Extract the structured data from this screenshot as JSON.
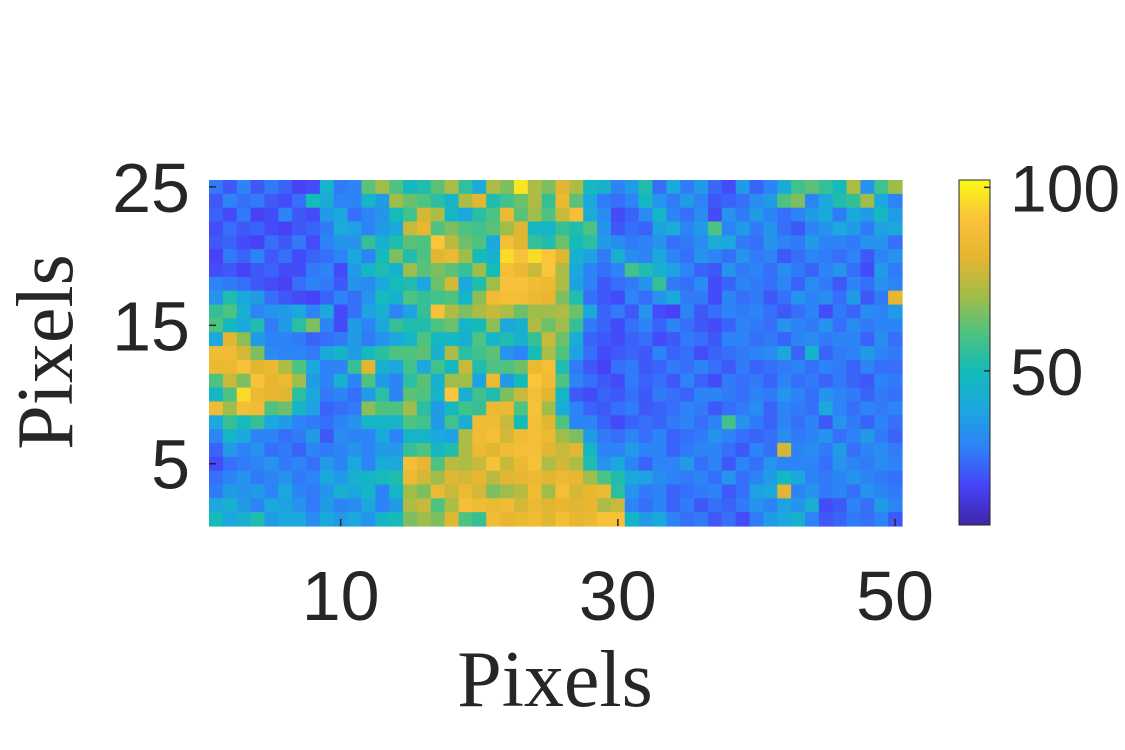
{
  "chart_data": {
    "type": "heatmap",
    "title": "",
    "xlabel": "Pixels",
    "ylabel": "Pixels",
    "xlim": [
      0.5,
      50.5
    ],
    "ylim": [
      0.5,
      25.5
    ],
    "x_ticks": [
      10,
      30,
      50
    ],
    "y_ticks": [
      5,
      15,
      25
    ],
    "colorbar": {
      "range": [
        8,
        102
      ],
      "ticks": [
        50,
        100
      ],
      "colormap": "parula"
    },
    "colormap_stops": [
      "#3e26a8",
      "#4743f8",
      "#2f80f9",
      "#1ca7df",
      "#13bbba",
      "#4ec280",
      "#a3bd47",
      "#e7b530",
      "#fac33a",
      "#f9fb14"
    ],
    "grid": false,
    "rows": 25,
    "cols": 50,
    "values_note_rows_top_to_bottom": "y = 25 first",
    "values": [
      [
        28,
        22,
        30,
        22,
        28,
        24,
        18,
        20,
        45,
        28,
        30,
        62,
        70,
        60,
        48,
        52,
        62,
        72,
        55,
        42,
        72,
        66,
        98,
        72,
        66,
        80,
        72,
        48,
        44,
        30,
        36,
        52,
        26,
        40,
        28,
        36,
        25,
        20,
        36,
        24,
        30,
        42,
        58,
        62,
        56,
        50,
        72,
        34,
        58,
        70
      ],
      [
        22,
        30,
        26,
        28,
        22,
        20,
        26,
        50,
        42,
        30,
        30,
        46,
        36,
        70,
        64,
        60,
        54,
        46,
        72,
        80,
        52,
        58,
        64,
        72,
        56,
        84,
        62,
        40,
        28,
        26,
        30,
        48,
        34,
        28,
        36,
        30,
        22,
        24,
        26,
        32,
        36,
        60,
        66,
        30,
        40,
        52,
        56,
        70,
        40,
        30
      ],
      [
        24,
        20,
        28,
        18,
        20,
        30,
        22,
        20,
        36,
        40,
        26,
        30,
        34,
        50,
        58,
        78,
        72,
        46,
        40,
        54,
        60,
        84,
        62,
        70,
        60,
        76,
        88,
        42,
        32,
        20,
        24,
        32,
        46,
        30,
        26,
        32,
        20,
        34,
        28,
        36,
        30,
        26,
        30,
        36,
        40,
        28,
        40,
        36,
        48,
        36
      ],
      [
        20,
        26,
        22,
        24,
        20,
        18,
        22,
        24,
        28,
        42,
        38,
        30,
        36,
        40,
        76,
        82,
        60,
        66,
        60,
        58,
        62,
        70,
        80,
        48,
        46,
        56,
        52,
        60,
        34,
        22,
        26,
        24,
        38,
        42,
        30,
        36,
        60,
        30,
        36,
        28,
        34,
        26,
        22,
        30,
        34,
        40,
        36,
        28,
        38,
        40
      ],
      [
        22,
        24,
        20,
        18,
        26,
        22,
        28,
        20,
        30,
        34,
        34,
        56,
        44,
        52,
        62,
        60,
        92,
        74,
        64,
        60,
        40,
        88,
        80,
        56,
        52,
        64,
        50,
        54,
        36,
        32,
        28,
        30,
        34,
        26,
        28,
        32,
        42,
        40,
        28,
        26,
        34,
        30,
        28,
        36,
        30,
        30,
        28,
        34,
        34,
        26
      ],
      [
        18,
        28,
        24,
        30,
        22,
        26,
        20,
        24,
        26,
        30,
        40,
        30,
        50,
        66,
        52,
        60,
        80,
        84,
        70,
        50,
        44,
        96,
        90,
        96,
        92,
        80,
        44,
        38,
        28,
        44,
        32,
        30,
        40,
        30,
        26,
        34,
        30,
        26,
        34,
        28,
        30,
        22,
        26,
        30,
        28,
        26,
        30,
        22,
        30,
        34
      ],
      [
        20,
        22,
        18,
        22,
        24,
        20,
        20,
        28,
        30,
        20,
        36,
        46,
        52,
        44,
        70,
        62,
        66,
        62,
        56,
        70,
        50,
        88,
        84,
        76,
        92,
        72,
        40,
        30,
        26,
        30,
        58,
        52,
        44,
        38,
        30,
        24,
        22,
        34,
        28,
        30,
        26,
        32,
        28,
        24,
        30,
        34,
        26,
        20,
        36,
        28
      ],
      [
        30,
        28,
        26,
        22,
        20,
        18,
        26,
        30,
        28,
        22,
        34,
        32,
        40,
        50,
        52,
        40,
        64,
        78,
        40,
        52,
        70,
        90,
        90,
        86,
        84,
        72,
        38,
        30,
        22,
        26,
        28,
        34,
        56,
        28,
        26,
        32,
        20,
        24,
        30,
        28,
        26,
        30,
        24,
        32,
        28,
        22,
        30,
        26,
        34,
        30
      ],
      [
        34,
        52,
        40,
        36,
        26,
        22,
        20,
        18,
        24,
        30,
        26,
        34,
        50,
        44,
        60,
        56,
        58,
        60,
        46,
        68,
        86,
        88,
        88,
        84,
        82,
        66,
        52,
        26,
        22,
        20,
        30,
        26,
        34,
        40,
        28,
        28,
        20,
        30,
        26,
        28,
        22,
        26,
        34,
        30,
        32,
        26,
        36,
        22,
        28,
        82
      ],
      [
        56,
        60,
        44,
        30,
        34,
        36,
        40,
        30,
        40,
        20,
        26,
        38,
        44,
        30,
        38,
        56,
        90,
        72,
        66,
        72,
        76,
        72,
        64,
        70,
        70,
        72,
        64,
        40,
        24,
        28,
        22,
        34,
        20,
        18,
        30,
        22,
        26,
        30,
        28,
        30,
        26,
        22,
        26,
        30,
        20,
        28,
        24,
        32,
        30,
        36
      ],
      [
        60,
        48,
        40,
        52,
        28,
        36,
        54,
        66,
        30,
        20,
        36,
        30,
        40,
        56,
        52,
        52,
        60,
        64,
        46,
        50,
        68,
        40,
        44,
        72,
        64,
        70,
        56,
        28,
        24,
        20,
        26,
        30,
        24,
        30,
        26,
        22,
        20,
        24,
        30,
        28,
        26,
        34,
        30,
        28,
        34,
        26,
        32,
        28,
        30,
        30
      ],
      [
        40,
        80,
        68,
        36,
        30,
        30,
        28,
        24,
        26,
        28,
        36,
        28,
        34,
        40,
        46,
        60,
        48,
        48,
        44,
        60,
        46,
        52,
        44,
        56,
        76,
        64,
        42,
        24,
        22,
        20,
        24,
        26,
        20,
        22,
        28,
        26,
        22,
        30,
        30,
        26,
        28,
        24,
        30,
        32,
        28,
        30,
        30,
        24,
        32,
        26
      ],
      [
        86,
        86,
        78,
        66,
        32,
        30,
        30,
        28,
        40,
        46,
        36,
        48,
        54,
        60,
        60,
        62,
        44,
        72,
        54,
        58,
        62,
        34,
        30,
        50,
        72,
        60,
        38,
        26,
        20,
        22,
        24,
        22,
        30,
        24,
        26,
        20,
        24,
        26,
        28,
        30,
        32,
        40,
        24,
        46,
        24,
        28,
        30,
        36,
        30,
        28
      ],
      [
        84,
        84,
        90,
        80,
        84,
        72,
        60,
        40,
        30,
        30,
        56,
        80,
        44,
        40,
        58,
        40,
        58,
        48,
        76,
        52,
        60,
        60,
        64,
        84,
        88,
        52,
        28,
        22,
        18,
        26,
        28,
        22,
        24,
        28,
        26,
        30,
        26,
        22,
        28,
        24,
        26,
        28,
        30,
        26,
        30,
        28,
        24,
        30,
        26,
        26
      ],
      [
        60,
        76,
        66,
        90,
        82,
        84,
        70,
        36,
        30,
        44,
        30,
        60,
        36,
        30,
        54,
        62,
        44,
        70,
        70,
        38,
        84,
        36,
        50,
        92,
        86,
        60,
        30,
        26,
        22,
        20,
        28,
        24,
        26,
        22,
        30,
        24,
        20,
        28,
        26,
        28,
        24,
        30,
        26,
        28,
        24,
        28,
        24,
        22,
        30,
        28
      ],
      [
        46,
        60,
        96,
        84,
        82,
        80,
        54,
        40,
        28,
        30,
        26,
        36,
        54,
        30,
        62,
        60,
        46,
        92,
        44,
        58,
        52,
        66,
        76,
        88,
        80,
        46,
        22,
        20,
        24,
        22,
        26,
        22,
        28,
        26,
        24,
        30,
        30,
        28,
        26,
        30,
        28,
        34,
        30,
        26,
        34,
        30,
        28,
        24,
        28,
        26
      ],
      [
        86,
        70,
        88,
        86,
        60,
        64,
        46,
        38,
        24,
        26,
        28,
        68,
        60,
        60,
        70,
        54,
        36,
        48,
        58,
        56,
        84,
        84,
        60,
        90,
        70,
        42,
        30,
        24,
        22,
        26,
        28,
        22,
        24,
        26,
        30,
        28,
        22,
        26,
        28,
        32,
        24,
        30,
        28,
        26,
        40,
        30,
        26,
        30,
        28,
        30
      ],
      [
        40,
        56,
        50,
        56,
        40,
        36,
        30,
        28,
        26,
        30,
        34,
        46,
        46,
        46,
        60,
        58,
        36,
        58,
        44,
        86,
        86,
        76,
        50,
        88,
        80,
        60,
        30,
        30,
        24,
        20,
        24,
        26,
        24,
        28,
        30,
        26,
        30,
        58,
        34,
        28,
        24,
        30,
        26,
        30,
        22,
        34,
        28,
        24,
        30,
        26
      ],
      [
        30,
        46,
        40,
        30,
        30,
        26,
        28,
        36,
        22,
        32,
        30,
        30,
        40,
        30,
        46,
        46,
        40,
        38,
        72,
        86,
        88,
        78,
        86,
        88,
        84,
        70,
        66,
        36,
        28,
        26,
        30,
        26,
        30,
        24,
        26,
        28,
        34,
        30,
        26,
        24,
        26,
        32,
        28,
        30,
        34,
        26,
        30,
        36,
        28,
        24
      ],
      [
        24,
        36,
        30,
        34,
        26,
        28,
        24,
        30,
        28,
        30,
        34,
        30,
        36,
        36,
        56,
        60,
        48,
        52,
        72,
        84,
        80,
        86,
        88,
        88,
        80,
        76,
        80,
        46,
        30,
        30,
        36,
        30,
        30,
        24,
        28,
        30,
        30,
        26,
        22,
        30,
        26,
        78,
        30,
        32,
        28,
        36,
        26,
        30,
        32,
        28
      ],
      [
        20,
        26,
        28,
        30,
        34,
        28,
        30,
        26,
        36,
        30,
        40,
        30,
        42,
        40,
        88,
        82,
        60,
        74,
        72,
        76,
        90,
        76,
        84,
        90,
        72,
        78,
        72,
        52,
        34,
        40,
        30,
        24,
        30,
        30,
        36,
        26,
        30,
        22,
        30,
        26,
        34,
        30,
        30,
        30,
        26,
        34,
        30,
        28,
        32,
        30
      ],
      [
        26,
        30,
        34,
        28,
        30,
        34,
        28,
        30,
        40,
        36,
        44,
        46,
        50,
        52,
        84,
        78,
        70,
        80,
        78,
        82,
        74,
        80,
        82,
        84,
        80,
        84,
        82,
        70,
        60,
        52,
        40,
        38,
        32,
        30,
        28,
        30,
        26,
        34,
        26,
        30,
        36,
        48,
        40,
        30,
        28,
        30,
        34,
        30,
        28,
        26
      ],
      [
        28,
        36,
        34,
        36,
        30,
        40,
        30,
        28,
        34,
        44,
        40,
        46,
        30,
        46,
        70,
        66,
        84,
        76,
        84,
        78,
        66,
        70,
        74,
        86,
        70,
        88,
        78,
        82,
        84,
        54,
        34,
        28,
        30,
        24,
        26,
        28,
        30,
        22,
        26,
        38,
        40,
        80,
        30,
        34,
        28,
        30,
        26,
        34,
        30,
        28
      ],
      [
        40,
        44,
        36,
        30,
        40,
        38,
        34,
        28,
        36,
        30,
        32,
        40,
        30,
        36,
        72,
        76,
        60,
        72,
        88,
        86,
        84,
        86,
        78,
        84,
        80,
        82,
        80,
        82,
        72,
        76,
        30,
        26,
        30,
        24,
        28,
        22,
        26,
        24,
        28,
        34,
        30,
        38,
        34,
        44,
        20,
        22,
        30,
        26,
        36,
        30
      ],
      [
        50,
        40,
        44,
        52,
        36,
        40,
        40,
        32,
        40,
        36,
        40,
        34,
        46,
        50,
        66,
        70,
        66,
        80,
        60,
        56,
        86,
        82,
        84,
        86,
        80,
        88,
        82,
        84,
        90,
        90,
        46,
        36,
        40,
        30,
        26,
        28,
        22,
        26,
        20,
        28,
        36,
        40,
        44,
        30,
        22,
        24,
        28,
        26,
        30,
        22
      ]
    ]
  }
}
